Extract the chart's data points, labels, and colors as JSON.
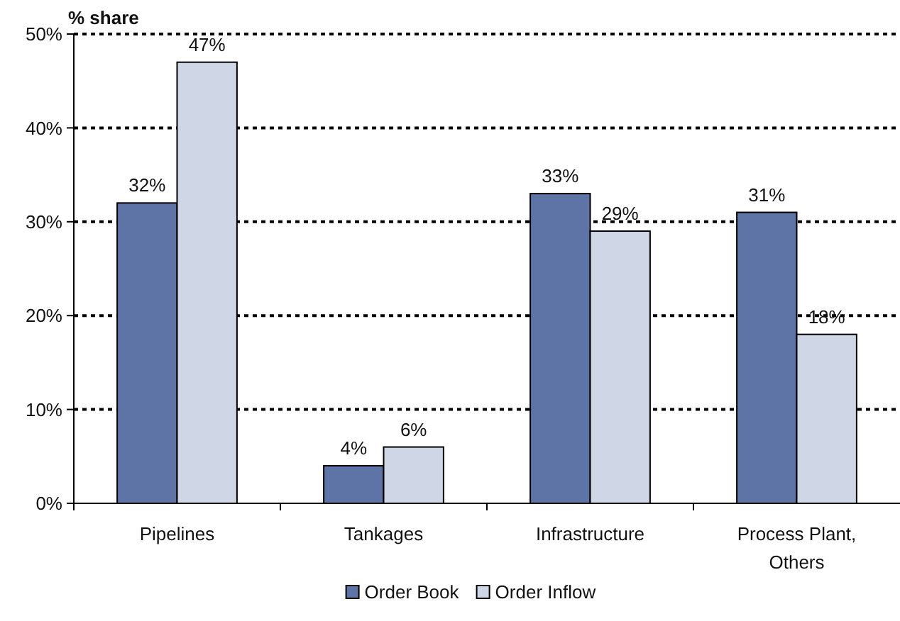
{
  "chart_data": {
    "type": "bar",
    "ylabel": "% share",
    "categories": [
      "Pipelines",
      "Tankages",
      "Infrastructure",
      "Process Plant, Others"
    ],
    "series": [
      {
        "name": "Order Book",
        "color": "#5e73a6",
        "values": [
          32,
          4,
          33,
          31
        ],
        "value_labels": [
          "32%",
          "4%",
          "33%",
          "31%"
        ]
      },
      {
        "name": "Order Inflow",
        "color": "#cfd6e5",
        "values": [
          47,
          6,
          29,
          18
        ],
        "value_labels": [
          "47%",
          "6%",
          "29%",
          "18%"
        ]
      }
    ],
    "ylim": [
      0,
      50
    ],
    "yticks": [
      {
        "value": 0,
        "label": "0%"
      },
      {
        "value": 10,
        "label": "10%"
      },
      {
        "value": 20,
        "label": "20%"
      },
      {
        "value": 30,
        "label": "30%"
      },
      {
        "value": 40,
        "label": "40%"
      },
      {
        "value": 50,
        "label": "50%"
      }
    ],
    "grid": "y",
    "legend": "bottom"
  }
}
